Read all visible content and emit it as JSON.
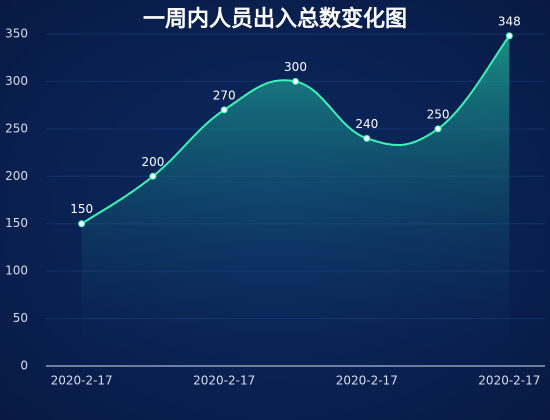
{
  "chart_data": {
    "type": "line",
    "title": "一周内人员出入总数变化图",
    "categories": [
      "2020-2-17",
      null,
      "2020-2-17",
      null,
      "2020-2-17",
      null,
      "2020-2-17"
    ],
    "values": [
      150,
      200,
      270,
      300,
      240,
      250,
      348
    ],
    "color": "#3df2b4",
    "area": true,
    "smooth": true,
    "ylim": [
      0,
      350
    ],
    "yticks": [
      0,
      50,
      100,
      150,
      200,
      250,
      300,
      350
    ],
    "grid": true
  }
}
